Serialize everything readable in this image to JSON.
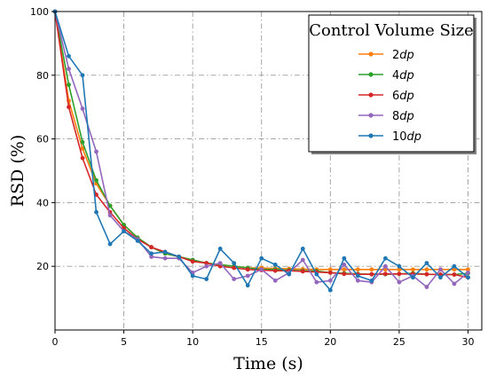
{
  "chart_data": {
    "type": "line",
    "xlabel": "Time (s)",
    "ylabel": "RSD (%)",
    "xlim": [
      0,
      31
    ],
    "ylim": [
      0,
      100
    ],
    "x_ticks": [
      0,
      5,
      10,
      15,
      20,
      25,
      30
    ],
    "y_ticks": [
      20,
      40,
      60,
      80,
      100
    ],
    "grid": true,
    "legend": {
      "title": "Control Volume Size",
      "placement": "top-right"
    },
    "x": [
      0,
      1,
      2,
      3,
      4,
      5,
      6,
      7,
      8,
      9,
      10,
      11,
      12,
      13,
      14,
      15,
      16,
      17,
      18,
      19,
      20,
      21,
      22,
      23,
      24,
      25,
      26,
      27,
      28,
      29,
      30
    ],
    "series": [
      {
        "name": "2dp",
        "color": "#ff7f0e",
        "values": [
          100,
          72,
          57,
          46,
          39,
          33,
          29,
          26,
          24,
          23,
          22,
          21,
          20.5,
          20,
          19.5,
          19.5,
          19.3,
          19.2,
          19.1,
          19,
          19,
          19,
          19,
          19,
          19,
          19,
          19,
          19,
          19,
          19,
          19
        ]
      },
      {
        "name": "4dp",
        "color": "#2ca02c",
        "values": [
          100,
          77,
          59,
          47,
          39,
          33,
          29,
          26,
          24,
          23,
          22,
          21,
          20.5,
          20,
          19.5,
          19,
          19,
          18.8,
          18.6,
          18.5,
          18,
          17.8,
          17.6,
          17.5,
          17.5,
          17.6,
          17.8,
          17.5,
          17.4,
          17.4,
          17.8
        ]
      },
      {
        "name": "6dp",
        "color": "#d62728",
        "values": [
          100,
          70,
          54,
          42.5,
          37,
          32,
          28.5,
          26,
          24.5,
          23,
          21.5,
          21,
          20,
          19.5,
          19,
          18.8,
          18.6,
          18.6,
          18.4,
          18.2,
          18,
          17.6,
          17.5,
          17.5,
          17.6,
          17.6,
          17.6,
          17.5,
          17.4,
          17.4,
          16.5
        ]
      },
      {
        "name": "8dp",
        "color": "#9467bd",
        "values": [
          100,
          82,
          69.5,
          56,
          36,
          31,
          28.5,
          23,
          22.5,
          22.5,
          18,
          20,
          21,
          16,
          17,
          19,
          15.5,
          18,
          22,
          15,
          15.5,
          20.5,
          15.5,
          15,
          20,
          15,
          17,
          13.5,
          19,
          14.5,
          18
        ]
      },
      {
        "name": "10dp",
        "color": "#1f77b4",
        "values": [
          100,
          86,
          80,
          37,
          27,
          31,
          28,
          24,
          24.5,
          23,
          17,
          16,
          25.5,
          21,
          14,
          22.5,
          20.5,
          17.5,
          25.5,
          17.5,
          12.5,
          22.5,
          17,
          15.5,
          22.5,
          20,
          16.5,
          21,
          16.5,
          20,
          16.5
        ]
      }
    ]
  }
}
